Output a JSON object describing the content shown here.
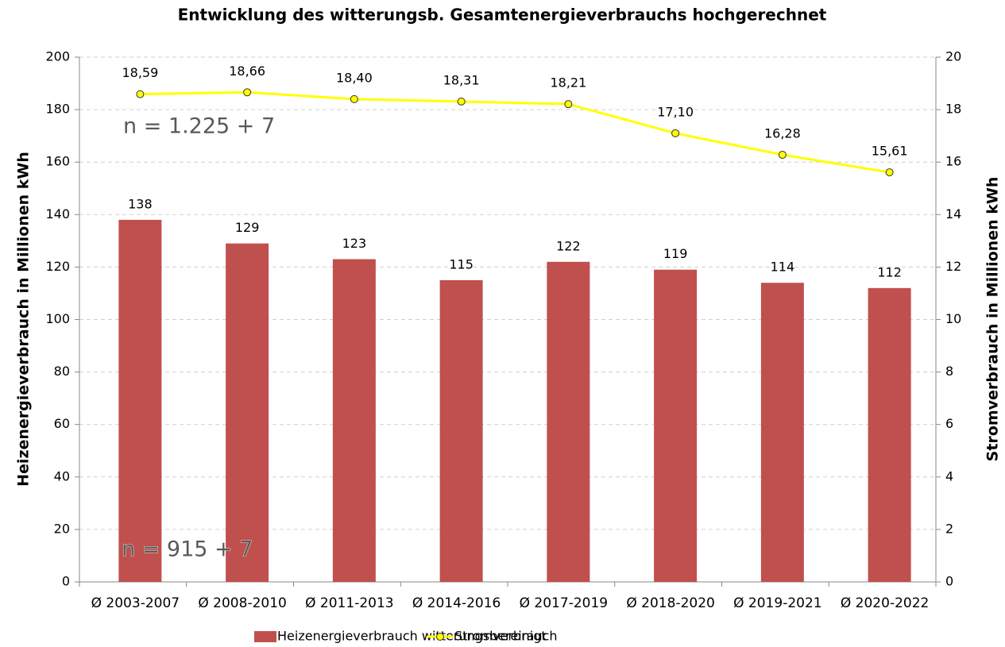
{
  "chart_data": {
    "type": "bar",
    "title": "Entwicklung des witterungsb. Gesamtenergieverbrauchs hochgerechnet",
    "y_label": "Heizenergieverbrauch in Millionen kWh",
    "y2_label": "Stromverbrauch in Millionen  kWh",
    "categories": [
      "Ø 2003-2007",
      "Ø 2008-2010",
      "Ø 2011-2013",
      "Ø 2014-2016",
      "Ø 2017-2019",
      "Ø 2018-2020",
      "Ø 2019-2021",
      "Ø 2020-2022"
    ],
    "series": [
      {
        "name": "Heizenergieverbrauch witterungsbereinigt",
        "type": "bar",
        "color": "#c0504d",
        "values": [
          138,
          129,
          123,
          115,
          122,
          119,
          114,
          112
        ]
      },
      {
        "name": "Stromverbrauch",
        "type": "line",
        "axis": "y2",
        "color": "#ffff00",
        "values": [
          18.59,
          18.66,
          18.4,
          18.31,
          18.21,
          17.1,
          16.28,
          15.61
        ],
        "value_labels": [
          "18,59",
          "18,66",
          "18,40",
          "18,31",
          "18,21",
          "17,10",
          "16,28",
          "15,61"
        ]
      }
    ],
    "annotations": [
      "n = 1.225 + 7",
      "n = 915 + 7"
    ],
    "ylim": [
      0,
      200
    ],
    "yticks": [
      0,
      20,
      40,
      60,
      80,
      100,
      120,
      140,
      160,
      180,
      200
    ],
    "y2lim": [
      0,
      20
    ],
    "y2ticks": [
      0,
      2,
      4,
      6,
      8,
      10,
      12,
      14,
      16,
      18,
      20
    ],
    "grid": true,
    "legend": "bottom"
  }
}
